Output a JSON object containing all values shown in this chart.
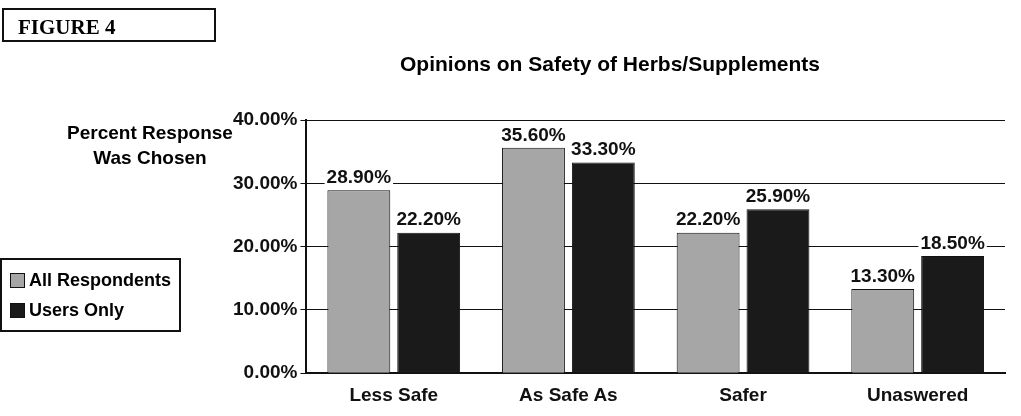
{
  "chart_data": {
    "type": "bar",
    "title": "Opinions on Safety of Herbs/Supplements",
    "ylabel": "Percent Response Was Chosen",
    "annotations": [
      "FIGURE 4"
    ],
    "categories": [
      "Less Safe",
      "As Safe As",
      "Safer",
      "Unaswered"
    ],
    "series": [
      {
        "name": "All Respondents",
        "color": "#a6a6a6",
        "values": [
          28.9,
          35.6,
          22.2,
          13.3
        ],
        "value_labels": [
          "28.90%",
          "35.60%",
          "22.20%",
          "13.30%"
        ]
      },
      {
        "name": "Users Only",
        "color": "#1a1a1a",
        "values": [
          22.2,
          33.3,
          25.9,
          18.5
        ],
        "value_labels": [
          "22.20%",
          "33.30%",
          "25.90%",
          "18.50%"
        ]
      }
    ],
    "ylim": [
      0,
      40
    ],
    "yticks": [
      {
        "value": 0,
        "label": "0.00%"
      },
      {
        "value": 10,
        "label": "10.00%"
      },
      {
        "value": 20,
        "label": "20.00%"
      },
      {
        "value": 30,
        "label": "30.00%"
      },
      {
        "value": 40,
        "label": "40.00%"
      }
    ],
    "grid": "y",
    "legend": "bottom left"
  }
}
